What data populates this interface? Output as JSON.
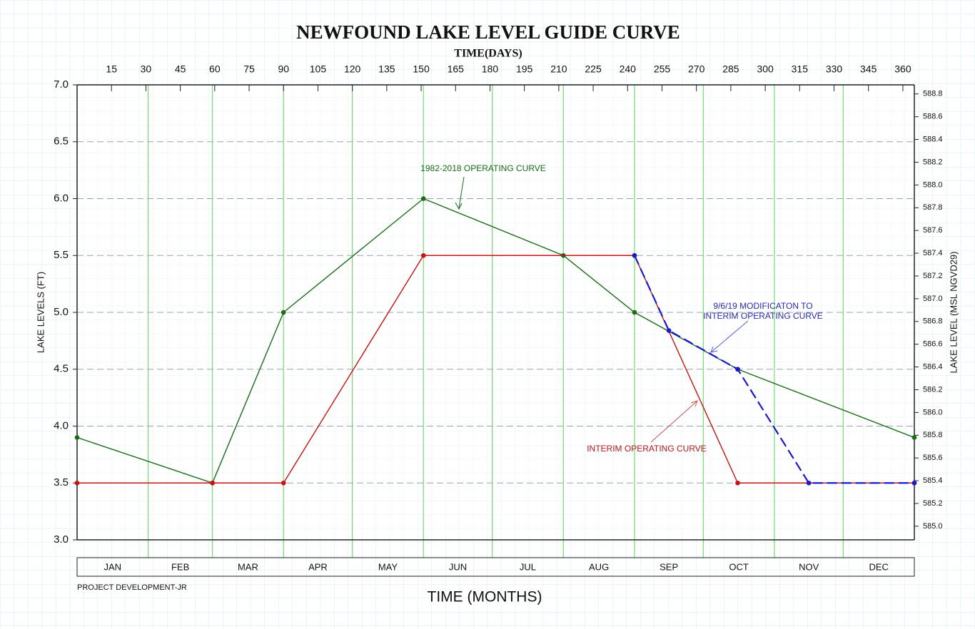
{
  "chart_data": {
    "type": "line",
    "title": "NEWFOUND LAKE LEVEL GUIDE CURVE",
    "x_label_top": "TIME(DAYS)",
    "x_label": "TIME (MONTHS)",
    "y_label": "LAKE LEVELS (FT)",
    "y2_label": "LAKE LEVEL (MSL NGVD29)",
    "note": "PROJECT DEVELOPMENT-JR",
    "xlim": [
      0,
      365
    ],
    "xticks": [
      15,
      30,
      45,
      60,
      75,
      90,
      105,
      120,
      135,
      150,
      165,
      180,
      195,
      210,
      225,
      240,
      255,
      270,
      285,
      300,
      315,
      330,
      345,
      360
    ],
    "ylim": [
      3,
      7
    ],
    "yticks": [
      {
        "value": 3,
        "label": "3.0"
      },
      3.5,
      {
        "value": 4,
        "label": "4.0"
      },
      4.5,
      {
        "value": 5,
        "label": "5.0"
      },
      5.5,
      {
        "value": 6,
        "label": "6.0"
      },
      6.5,
      {
        "value": 7,
        "label": "7.0"
      }
    ],
    "y2lim": [
      584.88,
      588.88
    ],
    "y2ticks": [
      {
        "value": 585,
        "label": "585.0"
      },
      585.2,
      585.4,
      585.6,
      585.8,
      {
        "value": 586,
        "label": "586.0"
      },
      586.2,
      586.4,
      586.6,
      586.8,
      {
        "value": 587,
        "label": "587.0"
      },
      587.2,
      587.4,
      587.6,
      587.8,
      {
        "value": 588,
        "label": "588.0"
      },
      588.2,
      588.4,
      588.6,
      588.8
    ],
    "month_ticks": [
      31,
      59,
      90,
      120,
      151,
      181,
      212,
      243,
      273,
      304,
      334
    ],
    "months": [
      "JAN",
      "FEB",
      "MAR",
      "APR",
      "MAY",
      "JUN",
      "JUL",
      "AUG",
      "SEP",
      "OCT",
      "NOV",
      "DEC"
    ],
    "grid": true,
    "grid_color": "#9aa4ab",
    "month_grid_color": "#7fdc7f",
    "series": [
      {
        "color": "#1a6b1a",
        "dashed": false,
        "x": [
          0,
          59,
          90,
          151,
          212,
          243,
          288,
          365
        ],
        "values": [
          3.9,
          3.5,
          5.0,
          6.0,
          5.5,
          5.0,
          4.5,
          3.9
        ]
      },
      {
        "color": "#cc1111",
        "dashed": false,
        "x": [
          0,
          59,
          90,
          151,
          243,
          288,
          365
        ],
        "values": [
          3.5,
          3.5,
          3.5,
          5.5,
          5.5,
          3.5,
          3.5
        ]
      },
      {
        "color": "#1a1acc",
        "dashed": true,
        "x": [
          243,
          258,
          288,
          319,
          365
        ],
        "values": [
          5.5,
          4.84,
          4.5,
          3.5,
          3.5
        ]
      }
    ],
    "annotations": [
      {
        "text": "1982-2018 OPERATING CURVE",
        "color": "#1a6b1a"
      },
      {
        "text": "9/6/19 MODIFICATON TO",
        "color": "#2a2ab8"
      },
      {
        "text": "INTERIM OPERATING CURVE",
        "color": "#2a2ab8"
      },
      {
        "text": "INTERIM OPERATING CURVE",
        "color": "#b81818"
      }
    ]
  }
}
